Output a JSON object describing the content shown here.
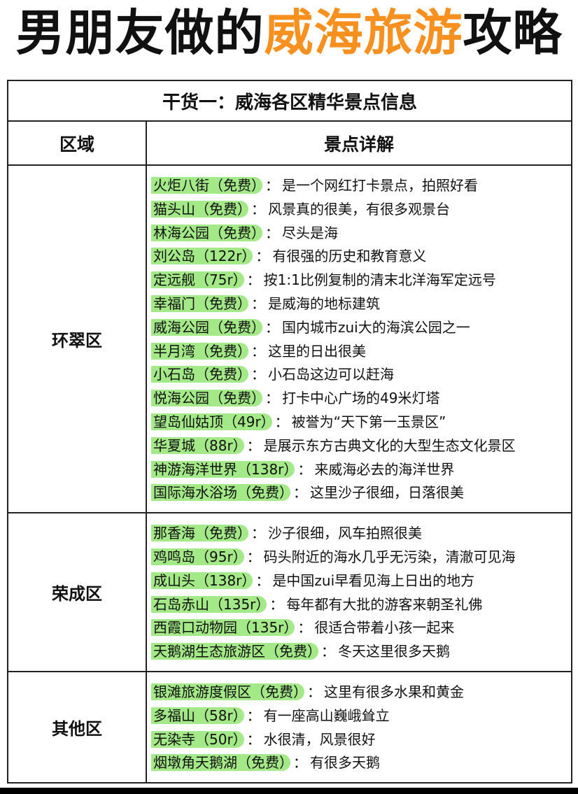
{
  "title": {
    "prefix": "男朋友做的",
    "highlight": "威海旅游",
    "suffix": "攻略",
    "highlight_color": "#f7901e"
  },
  "table": {
    "caption": "干货一：威海各区精华景点信息",
    "headers": [
      "区域",
      "景点详解"
    ],
    "tag_color": "#a4e987",
    "separator": "：",
    "sections": [
      {
        "region": "环翠区",
        "items": [
          {
            "name": "火炬八街（免费）",
            "desc": "是一个网红打卡景点，拍照好看"
          },
          {
            "name": "猫头山（免费）",
            "desc": "风景真的很美，有很多观景台"
          },
          {
            "name": "林海公园（免费）",
            "desc": "尽头是海"
          },
          {
            "name": "刘公岛（122r）",
            "desc": "有很强的历史和教育意义"
          },
          {
            "name": "定远舰（75r）",
            "desc": "按1:1比例复制的清末北洋海军定远号"
          },
          {
            "name": "幸福门（免费）",
            "desc": "是威海的地标建筑"
          },
          {
            "name": "威海公园（免费）",
            "desc": "国内城市zui大的海滨公园之一"
          },
          {
            "name": "半月湾（免费）",
            "desc": "这里的日出很美"
          },
          {
            "name": "小石岛（免费）",
            "desc": "小石岛这边可以赶海"
          },
          {
            "name": "悦海公园（免费）",
            "desc": "打卡中心广场的49米灯塔"
          },
          {
            "name": "望岛仙姑顶（49r）",
            "desc": "被誉为“天下第一玉景区”"
          },
          {
            "name": "华夏城（88r）",
            "desc": "是展示东方古典文化的大型生态文化景区"
          },
          {
            "name": "神游海洋世界（138r）",
            "desc": "来威海必去的海洋世界"
          },
          {
            "name": "国际海水浴场（免费）",
            "desc": "这里沙子很细，日落很美"
          }
        ]
      },
      {
        "region": "荣成区",
        "items": [
          {
            "name": "那香海（免费）",
            "desc": "沙子很细，风车拍照很美"
          },
          {
            "name": "鸡鸣岛（95r）",
            "desc": "码头附近的海水几乎无污染，清澈可见海"
          },
          {
            "name": "成山头（138r）",
            "desc": "是中国zui早看见海上日出的地方"
          },
          {
            "name": "石岛赤山（135r）",
            "desc": "每年都有大批的游客来朝圣礼佛"
          },
          {
            "name": "西霞口动物园（135r）",
            "desc": "很适合带着小孩一起来"
          },
          {
            "name": "天鹅湖生态旅游区（免费）",
            "desc": "冬天这里很多天鹅"
          }
        ]
      },
      {
        "region": "其他区",
        "items": [
          {
            "name": "银滩旅游度假区（免费）",
            "desc": "这里有很多水果和黄金"
          },
          {
            "name": "多福山（58r）",
            "desc": "有一座高山巍峨耸立"
          },
          {
            "name": "无染寺（50r）",
            "desc": "水很清，风景很好"
          },
          {
            "name": "烟墩角天鹅湖（免费）",
            "desc": "有很多天鹅"
          }
        ]
      }
    ]
  }
}
